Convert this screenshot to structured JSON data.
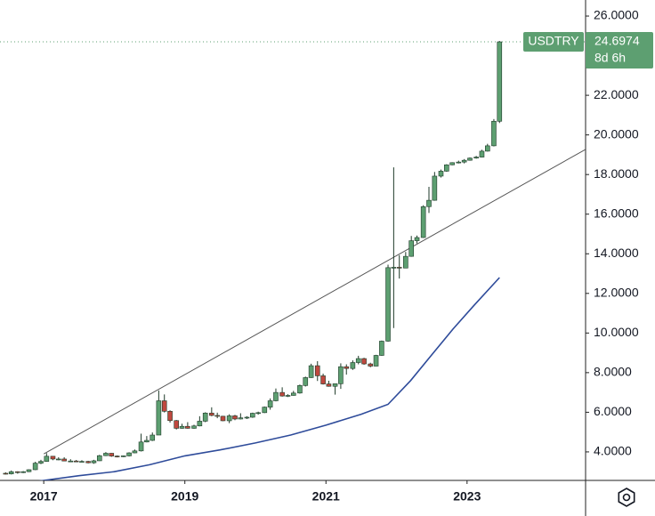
{
  "chart_data": {
    "type": "candlestick",
    "symbol": "USDTRY",
    "countdown": "8d 6h",
    "x": [
      2016.46,
      2016.54,
      2016.63,
      2016.71,
      2016.79,
      2016.88,
      2016.96,
      2017.04,
      2017.13,
      2017.21,
      2017.29,
      2017.38,
      2017.46,
      2017.54,
      2017.63,
      2017.71,
      2017.79,
      2017.88,
      2017.96,
      2018.04,
      2018.13,
      2018.21,
      2018.29,
      2018.38,
      2018.46,
      2018.54,
      2018.63,
      2018.71,
      2018.79,
      2018.88,
      2018.96,
      2019.04,
      2019.13,
      2019.21,
      2019.29,
      2019.38,
      2019.46,
      2019.54,
      2019.63,
      2019.71,
      2019.79,
      2019.88,
      2019.96,
      2020.04,
      2020.13,
      2020.21,
      2020.29,
      2020.38,
      2020.46,
      2020.54,
      2020.63,
      2020.71,
      2020.79,
      2020.88,
      2020.96,
      2021.04,
      2021.13,
      2021.21,
      2021.29,
      2021.38,
      2021.46,
      2021.54,
      2021.63,
      2021.71,
      2021.79,
      2021.88,
      2021.96,
      2022.04,
      2022.13,
      2022.21,
      2022.29,
      2022.38,
      2022.46,
      2022.54,
      2022.63,
      2022.71,
      2022.79,
      2022.88,
      2022.96,
      2023.04,
      2023.13,
      2023.21,
      2023.29,
      2023.38,
      2023.46
    ],
    "open": [
      2.92,
      2.89,
      3.0,
      2.96,
      3.0,
      3.1,
      3.43,
      3.52,
      3.78,
      3.64,
      3.64,
      3.54,
      3.54,
      3.51,
      3.52,
      3.45,
      3.55,
      3.81,
      3.93,
      3.79,
      3.77,
      3.8,
      3.95,
      4.05,
      4.5,
      4.58,
      4.85,
      6.58,
      6.05,
      5.58,
      5.19,
      5.29,
      5.19,
      5.31,
      5.55,
      5.96,
      5.84,
      5.8,
      5.57,
      5.82,
      5.66,
      5.72,
      5.75,
      5.95,
      5.98,
      6.26,
      6.58,
      7.0,
      6.82,
      6.85,
      6.97,
      7.35,
      7.75,
      8.35,
      7.84,
      7.43,
      7.31,
      7.44,
      8.3,
      8.21,
      8.51,
      8.71,
      8.44,
      8.33,
      8.87,
      9.59,
      13.3,
      13.32,
      13.28,
      13.87,
      14.66,
      14.82,
      16.38,
      16.7,
      17.92,
      18.17,
      18.49,
      18.6,
      18.63,
      18.72,
      18.83,
      18.88,
      19.18,
      19.45,
      20.69
    ],
    "high": [
      2.97,
      3.06,
      3.02,
      3.03,
      3.12,
      3.5,
      3.6,
      3.94,
      3.79,
      3.73,
      3.73,
      3.63,
      3.59,
      3.58,
      3.55,
      3.6,
      3.85,
      3.99,
      3.94,
      3.82,
      3.82,
      3.98,
      4.12,
      4.92,
      4.8,
      4.98,
      7.1,
      6.9,
      6.1,
      5.61,
      5.42,
      5.5,
      5.37,
      5.8,
      6.0,
      6.25,
      5.98,
      5.82,
      5.9,
      5.87,
      5.95,
      5.8,
      5.98,
      6.03,
      6.29,
      6.7,
      7.2,
      7.26,
      6.91,
      7.08,
      7.4,
      7.8,
      8.45,
      8.58,
      7.95,
      7.59,
      7.45,
      8.47,
      8.42,
      8.62,
      8.85,
      8.75,
      8.5,
      8.9,
      9.62,
      13.45,
      18.36,
      13.93,
      14.09,
      14.9,
      14.92,
      16.45,
      17.38,
      18.13,
      18.25,
      18.52,
      18.62,
      18.7,
      18.78,
      18.86,
      18.94,
      19.25,
      19.55,
      20.8,
      24.74
    ],
    "low": [
      2.86,
      2.86,
      2.9,
      2.93,
      2.98,
      3.08,
      3.38,
      3.5,
      3.58,
      3.58,
      3.53,
      3.48,
      3.48,
      3.48,
      3.42,
      3.4,
      3.54,
      3.79,
      3.75,
      3.72,
      3.74,
      3.77,
      3.93,
      4.02,
      4.48,
      4.55,
      4.85,
      5.99,
      5.48,
      5.13,
      5.17,
      5.17,
      5.17,
      5.29,
      5.5,
      5.8,
      5.7,
      5.55,
      5.45,
      5.6,
      5.64,
      5.66,
      5.72,
      5.88,
      5.96,
      6.13,
      6.55,
      6.79,
      6.77,
      6.84,
      6.94,
      7.3,
      7.73,
      7.58,
      7.4,
      7.29,
      6.89,
      7.18,
      7.9,
      8.14,
      8.42,
      8.4,
      8.27,
      8.32,
      8.85,
      9.56,
      10.25,
      12.75,
      13.27,
      13.85,
      14.52,
      14.8,
      16.06,
      16.68,
      17.85,
      18.14,
      18.47,
      18.56,
      18.56,
      18.7,
      18.8,
      18.86,
      19.16,
      19.42,
      20.6
    ],
    "close": [
      2.89,
      3.0,
      2.96,
      3.0,
      3.1,
      3.43,
      3.52,
      3.78,
      3.64,
      3.64,
      3.54,
      3.54,
      3.51,
      3.52,
      3.45,
      3.55,
      3.81,
      3.93,
      3.79,
      3.77,
      3.8,
      3.95,
      4.05,
      4.5,
      4.58,
      4.85,
      6.58,
      6.05,
      5.58,
      5.19,
      5.29,
      5.19,
      5.31,
      5.55,
      5.96,
      5.84,
      5.8,
      5.57,
      5.82,
      5.66,
      5.72,
      5.75,
      5.95,
      5.98,
      6.26,
      6.58,
      7.0,
      6.82,
      6.85,
      6.97,
      7.35,
      7.75,
      8.35,
      7.84,
      7.43,
      7.31,
      7.44,
      8.3,
      8.21,
      8.51,
      8.71,
      8.44,
      8.33,
      8.87,
      9.59,
      13.3,
      13.32,
      13.28,
      13.87,
      14.66,
      14.82,
      16.38,
      16.7,
      17.92,
      18.17,
      18.49,
      18.6,
      18.63,
      18.72,
      18.83,
      18.88,
      19.18,
      19.45,
      20.69,
      24.6974
    ],
    "up_color": "#5d9f71",
    "down_color": "#c0483f",
    "border_color": "#1e3a28",
    "moving_average": {
      "color": "#2e4b9a",
      "x": [
        2016.46,
        2017.0,
        2017.5,
        2018.0,
        2018.5,
        2019.0,
        2019.5,
        2020.0,
        2020.5,
        2021.0,
        2021.5,
        2021.88,
        2022.2,
        2022.5,
        2022.8,
        2023.1,
        2023.46
      ],
      "values": [
        2.3,
        2.56,
        2.8,
        3.0,
        3.35,
        3.8,
        4.1,
        4.45,
        4.85,
        5.35,
        5.9,
        6.4,
        7.6,
        8.9,
        10.2,
        11.4,
        12.8
      ]
    },
    "trendline": {
      "color": "#555555",
      "x": [
        2017.0,
        2024.68
      ],
      "values": [
        3.9,
        19.27
      ]
    },
    "xlim": [
      2016.38,
      2024.68
    ],
    "xticks": [
      2017,
      2019,
      2021,
      2023
    ],
    "ylim": [
      2.56,
      26.81
    ],
    "yticks": [
      {
        "value": 4,
        "label": "4.0000"
      },
      {
        "value": 6,
        "label": "6.0000"
      },
      {
        "value": 8,
        "label": "8.0000"
      },
      {
        "value": 10,
        "label": "10.0000"
      },
      {
        "value": 12,
        "label": "12.0000"
      },
      {
        "value": 14,
        "label": "14.0000"
      },
      {
        "value": 16,
        "label": "16.0000"
      },
      {
        "value": 18,
        "label": "18.0000"
      },
      {
        "value": 20,
        "label": "20.0000"
      },
      {
        "value": 22,
        "label": "22.0000"
      },
      {
        "value": 24,
        "label": "24.0000"
      },
      {
        "value": 26,
        "label": "26.0000"
      }
    ],
    "grid": false
  }
}
